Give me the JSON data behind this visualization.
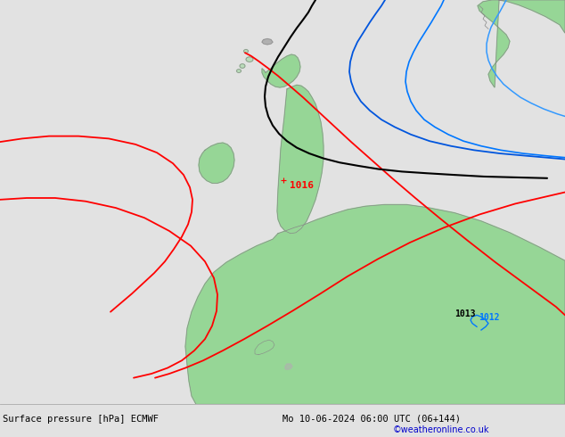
{
  "title_left": "Surface pressure [hPa] ECMWF",
  "title_right": "Mo 10-06-2024 06:00 UTC (06+144)",
  "credit": "©weatheronline.co.uk",
  "bg_color": "#e2e2e2",
  "land_green": "#96d696",
  "land_gray": "#b0b0b0",
  "coast_color": "#888888",
  "red_color": "#ff0000",
  "black_color": "#000000",
  "blue1_color": "#0055dd",
  "blue2_color": "#0077ff",
  "blue3_color": "#3399ff",
  "label_1016": "1016",
  "label_1013": "1013",
  "label_1012": "1012",
  "fig_width": 6.34,
  "fig_height": 4.9,
  "dpi": 100,
  "scotland_x": [
    305,
    310,
    315,
    318,
    322,
    326,
    328,
    330,
    332,
    335,
    336,
    335,
    332,
    328,
    324,
    320,
    316,
    312,
    308,
    304,
    300,
    298,
    297,
    298,
    300,
    303,
    305
  ],
  "scotland_y": [
    415,
    418,
    422,
    425,
    427,
    425,
    422,
    418,
    415,
    410,
    405,
    400,
    396,
    393,
    391,
    390,
    391,
    393,
    396,
    400,
    405,
    409,
    412,
    414,
    415,
    415,
    415
  ],
  "england_x": [
    322,
    326,
    330,
    334,
    338,
    342,
    346,
    350,
    354,
    358,
    362,
    364,
    365,
    364,
    362,
    358,
    354,
    350,
    346,
    342,
    338,
    334,
    330,
    326,
    322,
    320,
    320,
    322
  ],
  "england_y": [
    390,
    392,
    393,
    392,
    390,
    386,
    380,
    372,
    362,
    350,
    336,
    320,
    304,
    288,
    272,
    256,
    242,
    230,
    220,
    215,
    214,
    216,
    220,
    225,
    230,
    240,
    320,
    390
  ],
  "ireland_x": [
    230,
    238,
    246,
    252,
    258,
    262,
    264,
    263,
    260,
    256,
    250,
    244,
    238,
    232,
    228,
    226,
    226,
    228,
    230
  ],
  "ireland_y": [
    320,
    325,
    328,
    328,
    324,
    318,
    310,
    302,
    294,
    286,
    280,
    276,
    275,
    277,
    282,
    288,
    296,
    308,
    320
  ],
  "wales_x": [
    326,
    330,
    334,
    338,
    340,
    338,
    334,
    330,
    326,
    323,
    322,
    323,
    326
  ],
  "wales_y": [
    236,
    238,
    238,
    234,
    228,
    222,
    216,
    212,
    210,
    213,
    220,
    228,
    236
  ],
  "france_x": [
    350,
    365,
    382,
    400,
    420,
    442,
    465,
    490,
    518,
    548,
    580,
    614,
    634,
    634,
    580,
    540,
    500,
    460,
    420,
    380,
    350,
    340,
    338,
    340,
    345,
    350
  ],
  "france_y": [
    242,
    248,
    252,
    254,
    254,
    252,
    248,
    242,
    234,
    222,
    208,
    190,
    178,
    0,
    0,
    0,
    0,
    0,
    0,
    0,
    0,
    20,
    60,
    100,
    160,
    242
  ],
  "iberia_x": [
    390,
    370,
    348,
    324,
    298,
    270,
    240,
    208,
    174,
    138,
    100,
    60,
    20,
    0,
    0,
    60,
    120,
    180,
    240,
    300,
    360,
    390
  ],
  "iberia_y": [
    0,
    0,
    0,
    0,
    0,
    0,
    0,
    0,
    0,
    0,
    0,
    0,
    0,
    10,
    0,
    0,
    0,
    0,
    0,
    0,
    0,
    0
  ],
  "brittany_x": [
    296,
    305,
    315,
    320,
    320,
    314,
    305,
    296,
    290,
    290,
    296
  ],
  "brittany_y": [
    55,
    58,
    62,
    65,
    70,
    74,
    76,
    74,
    68,
    60,
    55
  ],
  "scandinavia_x": [
    560,
    568,
    576,
    586,
    598,
    612,
    626,
    634,
    634,
    620,
    605,
    590,
    575,
    562,
    552,
    545,
    542,
    545,
    550,
    558,
    565,
    568,
    566,
    562,
    558,
    556,
    558,
    562,
    567,
    572,
    574,
    572,
    566,
    560
  ],
  "scandinavia_y": [
    490,
    488,
    486,
    482,
    476,
    468,
    458,
    448,
    490,
    490,
    490,
    490,
    490,
    490,
    490,
    488,
    484,
    480,
    476,
    472,
    466,
    460,
    454,
    448,
    442,
    436,
    430,
    424,
    418,
    412,
    406,
    400,
    394,
    490
  ],
  "hebrides_x": [
    280,
    285,
    290,
    292,
    290,
    286,
    281,
    278,
    278,
    280
  ],
  "hebrides_y": [
    420,
    422,
    422,
    419,
    416,
    413,
    413,
    416,
    419,
    420
  ],
  "faroe_x": [
    298,
    302,
    306,
    308,
    306,
    302,
    298,
    296,
    297,
    298
  ],
  "faroe_y": [
    440,
    441,
    441,
    439,
    437,
    436,
    437,
    439,
    440,
    440
  ],
  "red_isobar1_x": [
    0,
    20,
    45,
    72,
    100,
    128,
    155,
    178,
    196,
    208,
    215,
    218,
    218,
    216,
    212,
    207,
    202,
    196,
    190,
    185
  ],
  "red_isobar1_y": [
    320,
    325,
    328,
    328,
    324,
    316,
    304,
    290,
    276,
    262,
    248,
    234,
    220,
    208,
    196,
    185,
    175,
    167,
    160,
    155
  ],
  "red_isobar2_x": [
    0,
    25,
    55,
    88,
    122,
    155,
    184,
    206,
    220,
    228,
    232,
    234,
    234,
    232,
    228,
    222,
    214,
    205,
    194,
    182,
    168,
    152,
    135,
    116,
    95,
    72,
    48,
    22,
    0
  ],
  "red_isobar2_y": [
    248,
    250,
    250,
    248,
    242,
    232,
    218,
    202,
    186,
    170,
    155,
    140,
    126,
    112,
    100,
    88,
    78,
    70,
    63,
    58,
    55,
    53,
    52,
    52,
    53,
    55,
    58,
    60,
    62
  ],
  "red_isobar3_x": [
    185,
    196,
    210,
    226,
    244,
    264,
    286,
    310,
    336,
    364,
    394,
    426,
    460,
    495,
    530,
    565,
    600,
    634
  ],
  "red_isobar3_y": [
    155,
    160,
    167,
    175,
    185,
    196,
    208,
    222,
    236,
    250,
    260,
    266,
    268,
    266,
    260,
    250,
    238,
    224
  ],
  "red_isobar4_x": [
    295,
    308,
    323,
    340,
    358,
    378,
    400,
    424,
    450,
    478,
    508,
    538,
    568,
    600,
    634
  ],
  "red_isobar4_y": [
    430,
    428,
    424,
    418,
    410,
    400,
    388,
    374,
    358,
    340,
    320,
    298,
    274,
    248,
    234
  ],
  "black_isobar_x": [
    360,
    358,
    354,
    348,
    340,
    332,
    324,
    316,
    310,
    306,
    304,
    304,
    306,
    310,
    316,
    325,
    336,
    350,
    366,
    385,
    407,
    431,
    458,
    487,
    518,
    550,
    583,
    616
  ],
  "black_isobar_y": [
    490,
    484,
    476,
    467,
    456,
    445,
    433,
    420,
    408,
    396,
    384,
    372,
    360,
    348,
    337,
    326,
    316,
    307,
    299,
    292,
    286,
    280,
    274,
    268,
    262,
    255,
    248,
    240
  ],
  "blue1_isobar_x": [
    440,
    436,
    430,
    422,
    414,
    406,
    400,
    396,
    394,
    395,
    398,
    404,
    412,
    422,
    435,
    450,
    467,
    487,
    508,
    531,
    556,
    582,
    610,
    634
  ],
  "blue1_isobar_y": [
    490,
    484,
    476,
    466,
    454,
    442,
    430,
    418,
    406,
    394,
    382,
    370,
    359,
    348,
    338,
    329,
    321,
    314,
    308,
    303,
    298,
    294,
    290,
    288
  ],
  "blue2_isobar_x": [
    510,
    506,
    500,
    493,
    484,
    476,
    468,
    461,
    456,
    454,
    453,
    454,
    457,
    462,
    470,
    480,
    492,
    506,
    522,
    540,
    560,
    582,
    606,
    630,
    634
  ],
  "blue2_isobar_y": [
    490,
    484,
    476,
    466,
    455,
    443,
    431,
    419,
    407,
    395,
    383,
    371,
    359,
    348,
    338,
    329,
    321,
    314,
    308,
    303,
    298,
    294,
    290,
    287,
    286
  ],
  "blue3_isobar_x": [
    570,
    568,
    564,
    558,
    552,
    548,
    545,
    543,
    543,
    545,
    548,
    553,
    560,
    568,
    577,
    588,
    600,
    614,
    628,
    634
  ],
  "blue3_isobar_y": [
    490,
    486,
    480,
    472,
    463,
    454,
    445,
    436,
    427,
    418,
    409,
    400,
    392,
    384,
    376,
    369,
    362,
    356,
    350,
    348
  ]
}
